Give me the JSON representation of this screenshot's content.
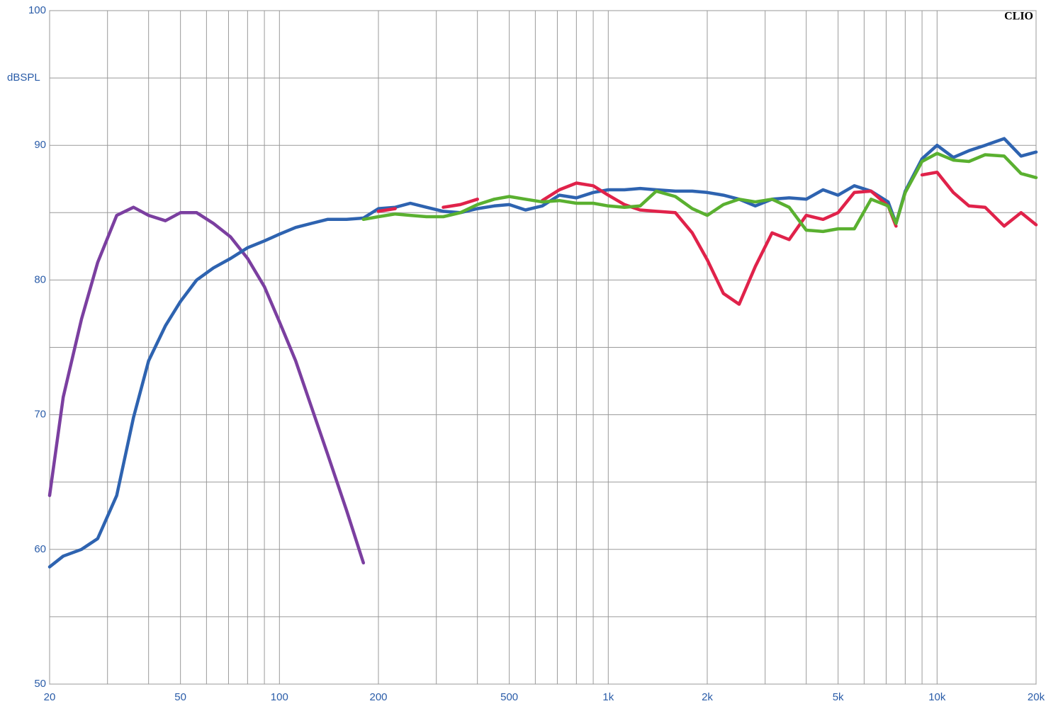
{
  "chart_data": {
    "type": "line",
    "brand": "CLIO",
    "y_label": "dBSPL",
    "log_x": true,
    "grid": true,
    "xlim": [
      20,
      20000
    ],
    "xticks": [
      20,
      50,
      100,
      200,
      500,
      {
        "value": 1000,
        "label": "1k"
      },
      {
        "value": 2000,
        "label": "2k"
      },
      {
        "value": 5000,
        "label": "5k"
      },
      {
        "value": 10000,
        "label": "10k"
      },
      {
        "value": 20000,
        "label": "20k"
      }
    ],
    "xgrid": [
      30,
      40,
      60,
      70,
      80,
      90,
      300,
      400,
      600,
      700,
      800,
      900,
      3000,
      4000,
      6000,
      7000,
      8000,
      9000
    ],
    "ylim": [
      50,
      100
    ],
    "yticks": [
      50,
      60,
      70,
      80,
      90,
      100
    ],
    "ygrid": [
      55,
      65,
      75,
      85,
      95
    ],
    "x": [
      20,
      22,
      25,
      28,
      32,
      36,
      40,
      45,
      50,
      56,
      63,
      71,
      80,
      90,
      100,
      112,
      125,
      140,
      160,
      180,
      200,
      225,
      250,
      280,
      315,
      355,
      400,
      450,
      500,
      560,
      630,
      710,
      800,
      900,
      1000,
      1120,
      1250,
      1400,
      1600,
      1800,
      2000,
      2240,
      2500,
      2800,
      3150,
      3550,
      4000,
      4500,
      5000,
      5600,
      6300,
      7100,
      7500,
      8000,
      9000,
      10000,
      11200,
      12500,
      14000,
      16000,
      18000,
      20000
    ],
    "series": [
      {
        "color": "#7b3fa0",
        "values": [
          64,
          71.3,
          77.1,
          81.3,
          84.8,
          85.4,
          84.8,
          84.4,
          85,
          85,
          84.2,
          83.2,
          81.6,
          79.5,
          76.9,
          74,
          70.6,
          67.1,
          62.9,
          59,
          null,
          null,
          null,
          null,
          null,
          null,
          null,
          null,
          null,
          null,
          null,
          null,
          null,
          null,
          null,
          null,
          null,
          null,
          null,
          null,
          null,
          null,
          null,
          null,
          null,
          null,
          null,
          null,
          null,
          null,
          null,
          null,
          null,
          null,
          null,
          null,
          null,
          null,
          null,
          null,
          null,
          null
        ]
      },
      {
        "color": "#2e63b0",
        "values": [
          58.7,
          59.5,
          60.0,
          60.8,
          64.0,
          69.8,
          74.0,
          76.6,
          78.4,
          80.0,
          80.9,
          81.6,
          82.4,
          82.9,
          83.4,
          83.9,
          84.2,
          84.5,
          84.5,
          84.6,
          85.3,
          85.4,
          85.7,
          85.4,
          85.1,
          85.0,
          85.3,
          85.5,
          85.6,
          85.2,
          85.5,
          86.3,
          86.1,
          86.5,
          86.7,
          86.7,
          86.8,
          86.7,
          86.6,
          86.6,
          86.5,
          86.3,
          86.0,
          85.5,
          86.0,
          86.1,
          86.0,
          86.7,
          86.3,
          87.0,
          86.6,
          85.8,
          84.2,
          86.6,
          89.0,
          90.0,
          89.1,
          89.6,
          90.0,
          90.5,
          89.2,
          89.5
        ]
      },
      {
        "color": "#e0224a",
        "values": [
          null,
          null,
          null,
          null,
          null,
          null,
          null,
          null,
          null,
          null,
          null,
          null,
          null,
          null,
          null,
          null,
          null,
          null,
          null,
          null,
          85.1,
          85.3,
          null,
          null,
          85.4,
          85.6,
          86.0,
          null,
          null,
          null,
          85.9,
          86.7,
          87.2,
          87.0,
          86.3,
          85.6,
          85.2,
          85.1,
          85.0,
          83.5,
          81.5,
          79.0,
          78.2,
          81.0,
          83.5,
          83.0,
          84.8,
          84.5,
          85.0,
          86.5,
          86.6,
          85.5,
          84.0,
          null,
          87.8,
          88.0,
          86.5,
          85.5,
          85.4,
          84.0,
          85.0,
          84.1
        ]
      },
      {
        "color": "#5ab030",
        "values": [
          null,
          null,
          null,
          null,
          null,
          null,
          null,
          null,
          null,
          null,
          null,
          null,
          null,
          null,
          null,
          null,
          null,
          null,
          null,
          84.5,
          84.7,
          84.9,
          84.8,
          84.7,
          84.7,
          85.0,
          85.6,
          86.0,
          86.2,
          86.0,
          85.8,
          85.9,
          85.7,
          85.7,
          85.5,
          85.4,
          85.5,
          86.6,
          86.2,
          85.3,
          84.8,
          85.6,
          86.0,
          85.8,
          86.0,
          85.4,
          83.7,
          83.6,
          83.8,
          83.8,
          86.0,
          85.5,
          84.2,
          86.5,
          88.8,
          89.4,
          88.9,
          88.8,
          89.3,
          89.2,
          87.9,
          87.6
        ]
      }
    ]
  }
}
